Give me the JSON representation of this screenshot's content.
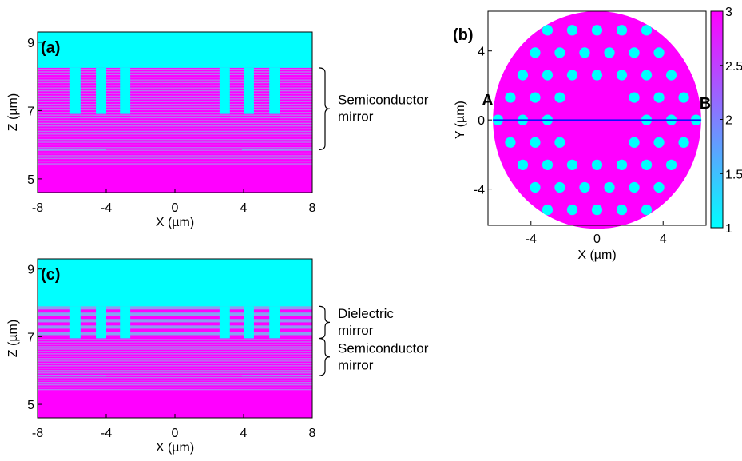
{
  "colors": {
    "air": "#00ffff",
    "semiconductor": "#ff00ff",
    "stripe": "#a78cf0",
    "dielectric_stripe": "#8a9ff0",
    "axis_line": "#1010ff",
    "colorbar_low": "#00ffff",
    "colorbar_high": "#ff00ff"
  },
  "chart_data": [
    {
      "id": "a",
      "type": "heatmap",
      "panel_label": "(a)",
      "xlabel": "X (µm)",
      "ylabel": "Z (µm)",
      "xlim": [
        -8,
        8
      ],
      "ylim": [
        4.6,
        9.3
      ],
      "xticks": [
        "-8",
        "-4",
        "0",
        "4",
        "8"
      ],
      "xtick_values": [
        -8,
        -4,
        0,
        4,
        8
      ],
      "yticks": [
        "5",
        "7",
        "9"
      ],
      "ytick_values": [
        5,
        7,
        9
      ],
      "air_above_z": 8.25,
      "semiconductor_z": [
        4.6,
        8.25
      ],
      "stripe_layer_z": [
        5.4,
        8.25
      ],
      "stripe_count": 36,
      "holes_x": [
        [
          -6.1,
          -5.5
        ],
        [
          -4.6,
          -4.0
        ],
        [
          -3.2,
          -2.6
        ],
        [
          2.6,
          3.2
        ],
        [
          4.0,
          4.6
        ],
        [
          5.5,
          6.1
        ]
      ],
      "holes_bottom_z": 6.9,
      "interfaces": [
        {
          "z": 5.85,
          "x_ranges": [
            [
              -8,
              -4.0
            ],
            [
              3.9,
              8
            ]
          ]
        }
      ],
      "brace_labels": [
        {
          "text_lines": [
            "Semiconductor",
            "mirror"
          ],
          "z_range": [
            5.85,
            8.25
          ]
        }
      ]
    },
    {
      "id": "b",
      "type": "heatmap",
      "panel_label": "(b)",
      "xlabel": "X (µm)",
      "ylabel": "Y (µm)",
      "xlim": [
        -6.6,
        6.6
      ],
      "ylim": [
        -6.1,
        6.3
      ],
      "xticks": [
        "-4",
        "0",
        "4"
      ],
      "xtick_values": [
        -4,
        0,
        4
      ],
      "yticks": [
        "4",
        "0",
        "-4"
      ],
      "ytick_values": [
        4,
        0,
        -4
      ],
      "disk_radius": 6.3,
      "hole_radius": 0.32,
      "lattice_pitch": 1.5,
      "hole_rows": [
        {
          "y": 5.2,
          "x": [
            -3.0,
            -1.5,
            0,
            1.5,
            3.0
          ]
        },
        {
          "y": 3.9,
          "x": [
            -3.75,
            -2.25,
            -0.75,
            0.75,
            2.25,
            3.75
          ]
        },
        {
          "y": 2.6,
          "x": [
            -4.5,
            -3.0,
            -1.5,
            0,
            1.5,
            3.0,
            4.5
          ]
        },
        {
          "y": 1.3,
          "x": [
            -5.25,
            -3.75,
            -2.25,
            2.25,
            3.75,
            5.25
          ]
        },
        {
          "y": 0,
          "x": [
            -6.0,
            -4.5,
            -3.0,
            3.0,
            4.5,
            6.0
          ]
        },
        {
          "y": -1.3,
          "x": [
            -5.25,
            -3.75,
            -2.25,
            2.25,
            3.75,
            5.25
          ]
        },
        {
          "y": -2.6,
          "x": [
            -4.5,
            -3.0,
            -1.5,
            0,
            1.5,
            3.0,
            4.5
          ]
        },
        {
          "y": -3.9,
          "x": [
            -3.75,
            -2.25,
            -0.75,
            0.75,
            2.25,
            3.75
          ]
        },
        {
          "y": -5.2,
          "x": [
            -3.0,
            -1.5,
            0,
            1.5,
            3.0
          ]
        }
      ],
      "cut_line": {
        "y": 0,
        "x": [
          -6.3,
          6.3
        ],
        "start_label": "A",
        "end_label": "B"
      },
      "colorbar": {
        "range": [
          1,
          3
        ],
        "ticks": [
          "3",
          "2.5",
          "2",
          "1.5",
          "1"
        ],
        "tick_values": [
          3,
          2.5,
          2,
          1.5,
          1
        ]
      }
    },
    {
      "id": "c",
      "type": "heatmap",
      "panel_label": "(c)",
      "xlabel": "X (µm)",
      "ylabel": "Z (µm)",
      "xlim": [
        -8,
        8
      ],
      "ylim": [
        4.6,
        9.3
      ],
      "xticks": [
        "-8",
        "-4",
        "0",
        "4",
        "8"
      ],
      "xtick_values": [
        -8,
        -4,
        0,
        4,
        8
      ],
      "yticks": [
        "5",
        "7",
        "9"
      ],
      "ytick_values": [
        5,
        7,
        9
      ],
      "air_above_z": 7.9,
      "semiconductor_z": [
        4.6,
        6.95
      ],
      "stripe_layer_z": [
        5.4,
        6.95
      ],
      "stripe_count": 22,
      "dielectric_z": [
        6.95,
        7.9
      ],
      "dielectric_stripe_count": 5,
      "holes_x": [
        [
          -6.1,
          -5.5
        ],
        [
          -4.6,
          -4.0
        ],
        [
          -3.2,
          -2.6
        ],
        [
          2.6,
          3.2
        ],
        [
          4.0,
          4.6
        ],
        [
          5.5,
          6.1
        ]
      ],
      "holes_bottom_z": 6.95,
      "interfaces": [
        {
          "z": 5.85,
          "x_ranges": [
            [
              -8,
              -4.0
            ],
            [
              3.9,
              8
            ]
          ]
        }
      ],
      "brace_labels": [
        {
          "text_lines": [
            "Dielectric",
            "mirror"
          ],
          "z_range": [
            6.95,
            7.9
          ]
        },
        {
          "text_lines": [
            "Semiconductor",
            "mirror"
          ],
          "z_range": [
            5.85,
            6.95
          ]
        }
      ]
    }
  ]
}
